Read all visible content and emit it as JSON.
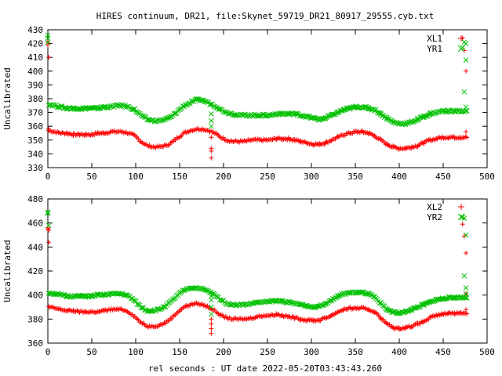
{
  "chart_data": [
    {
      "type": "scatter",
      "title": "HIRES continuum, DR21, file:Skynet_59719_DR21_80917_29555.cyb.txt",
      "ylabel": "Uncalibrated",
      "xlim": [
        0,
        500
      ],
      "ylim": [
        330,
        430
      ],
      "xticks": [
        0,
        50,
        100,
        150,
        200,
        250,
        300,
        350,
        400,
        450,
        500
      ],
      "yticks": [
        330,
        340,
        350,
        360,
        370,
        380,
        390,
        400,
        410,
        420,
        430
      ],
      "legend_position": "top-right",
      "series": [
        {
          "name": "XL1",
          "marker": "+",
          "color": "#ff0000",
          "base": 352,
          "x": [
            1,
            8,
            15,
            22,
            29,
            36,
            43,
            50,
            57,
            64,
            71,
            78,
            85,
            92,
            99,
            106,
            113,
            120,
            127,
            134,
            141,
            148,
            155,
            162,
            169,
            176,
            183,
            190,
            197,
            204,
            211,
            218,
            225,
            232,
            239,
            246,
            253,
            260,
            267,
            274,
            281,
            288,
            295,
            302,
            309,
            316,
            323,
            330,
            337,
            344,
            351,
            358,
            365,
            372,
            379,
            386,
            393,
            400,
            407,
            414,
            421,
            428,
            435,
            442,
            449,
            456,
            463,
            470,
            477
          ],
          "y": [
            357,
            356,
            355,
            355,
            354,
            354,
            354,
            354,
            355,
            355,
            356,
            356,
            356,
            355,
            353,
            349,
            346,
            345,
            345,
            346,
            348,
            352,
            355,
            357,
            358,
            358,
            357,
            355,
            352,
            350,
            349,
            349,
            349,
            350,
            350,
            350,
            350,
            351,
            351,
            351,
            350,
            349,
            348,
            347,
            347,
            348,
            350,
            352,
            354,
            355,
            356,
            356,
            355,
            353,
            350,
            347,
            345,
            344,
            344,
            345,
            346,
            348,
            350,
            351,
            352,
            352,
            352,
            352,
            352
          ],
          "outliers": [
            [
              0,
              419
            ],
            [
              0,
              421
            ],
            [
              1,
              410
            ],
            [
              1,
              358
            ],
            [
              186,
              344
            ],
            [
              186,
              342
            ],
            [
              186,
              337
            ],
            [
              186,
              352
            ],
            [
              472,
              424
            ],
            [
              474,
              415
            ],
            [
              476,
              400
            ],
            [
              476,
              356
            ]
          ]
        },
        {
          "name": "YR1",
          "marker": "x",
          "color": "#00c000",
          "base": 372,
          "x": [
            1,
            8,
            15,
            22,
            29,
            36,
            43,
            50,
            57,
            64,
            71,
            78,
            85,
            92,
            99,
            106,
            113,
            120,
            127,
            134,
            141,
            148,
            155,
            162,
            169,
            176,
            183,
            190,
            197,
            204,
            211,
            218,
            225,
            232,
            239,
            246,
            253,
            260,
            267,
            274,
            281,
            288,
            295,
            302,
            309,
            316,
            323,
            330,
            337,
            344,
            351,
            358,
            365,
            372,
            379,
            386,
            393,
            400,
            407,
            414,
            421,
            428,
            435,
            442,
            449,
            456,
            463,
            470,
            477
          ],
          "y": [
            376,
            375,
            374,
            373,
            373,
            373,
            373,
            373,
            373,
            374,
            374,
            375,
            375,
            374,
            372,
            368,
            365,
            364,
            364,
            365,
            367,
            371,
            375,
            377,
            379,
            379,
            377,
            375,
            372,
            370,
            369,
            368,
            368,
            368,
            368,
            368,
            368,
            369,
            369,
            369,
            369,
            368,
            367,
            366,
            365,
            366,
            368,
            370,
            372,
            373,
            374,
            374,
            373,
            372,
            369,
            366,
            363,
            362,
            362,
            363,
            365,
            367,
            369,
            370,
            371,
            371,
            371,
            371,
            371
          ],
          "outliers": [
            [
              0,
              426
            ],
            [
              0,
              424
            ],
            [
              0,
              421
            ],
            [
              186,
              360
            ],
            [
              186,
              364
            ],
            [
              186,
              369
            ],
            [
              472,
              417
            ],
            [
              474,
              421
            ],
            [
              476,
              408
            ],
            [
              474,
              385
            ],
            [
              476,
              374
            ],
            [
              476,
              420
            ]
          ]
        }
      ]
    },
    {
      "type": "scatter",
      "xlabel": "rel seconds : UT date 2022-05-20T03:43:43.260",
      "ylabel": "Uncalibrated",
      "xlim": [
        0,
        500
      ],
      "ylim": [
        360,
        480
      ],
      "xticks": [
        0,
        50,
        100,
        150,
        200,
        250,
        300,
        350,
        400,
        450,
        500
      ],
      "yticks": [
        360,
        380,
        400,
        420,
        440,
        460,
        480
      ],
      "legend_position": "top-right",
      "series": [
        {
          "name": "XL2",
          "marker": "+",
          "color": "#ff0000",
          "base": 385,
          "x": [
            1,
            8,
            15,
            22,
            29,
            36,
            43,
            50,
            57,
            64,
            71,
            78,
            85,
            92,
            99,
            106,
            113,
            120,
            127,
            134,
            141,
            148,
            155,
            162,
            169,
            176,
            183,
            190,
            197,
            204,
            211,
            218,
            225,
            232,
            239,
            246,
            253,
            260,
            267,
            274,
            281,
            288,
            295,
            302,
            309,
            316,
            323,
            330,
            337,
            344,
            351,
            358,
            365,
            372,
            379,
            386,
            393,
            400,
            407,
            414,
            421,
            428,
            435,
            442,
            449,
            456,
            463,
            470,
            477
          ],
          "y": [
            390,
            389,
            388,
            387,
            387,
            386,
            386,
            386,
            386,
            387,
            388,
            388,
            388,
            386,
            382,
            377,
            374,
            374,
            375,
            377,
            381,
            386,
            390,
            392,
            393,
            392,
            390,
            387,
            383,
            381,
            380,
            380,
            380,
            381,
            382,
            383,
            383,
            384,
            383,
            382,
            381,
            380,
            379,
            379,
            379,
            381,
            383,
            386,
            388,
            389,
            389,
            389,
            388,
            386,
            381,
            376,
            373,
            372,
            373,
            374,
            376,
            378,
            381,
            383,
            384,
            385,
            385,
            385,
            385
          ],
          "outliers": [
            [
              0,
              456
            ],
            [
              0,
              455
            ],
            [
              1,
              454
            ],
            [
              1,
              444
            ],
            [
              186,
              380
            ],
            [
              186,
              376
            ],
            [
              186,
              372
            ],
            [
              186,
              368
            ],
            [
              472,
              459
            ],
            [
              474,
              449
            ],
            [
              476,
              435
            ],
            [
              476,
              401
            ],
            [
              476,
              388
            ]
          ]
        },
        {
          "name": "YR2",
          "marker": "x",
          "color": "#00c000",
          "base": 398,
          "x": [
            1,
            8,
            15,
            22,
            29,
            36,
            43,
            50,
            57,
            64,
            71,
            78,
            85,
            92,
            99,
            106,
            113,
            120,
            127,
            134,
            141,
            148,
            155,
            162,
            169,
            176,
            183,
            190,
            197,
            204,
            211,
            218,
            225,
            232,
            239,
            246,
            253,
            260,
            267,
            274,
            281,
            288,
            295,
            302,
            309,
            316,
            323,
            330,
            337,
            344,
            351,
            358,
            365,
            372,
            379,
            386,
            393,
            400,
            407,
            414,
            421,
            428,
            435,
            442,
            449,
            456,
            463,
            470,
            477
          ],
          "y": [
            402,
            401,
            400,
            399,
            399,
            399,
            399,
            399,
            400,
            400,
            401,
            401,
            401,
            399,
            395,
            390,
            387,
            387,
            388,
            391,
            395,
            400,
            404,
            406,
            406,
            405,
            403,
            400,
            396,
            393,
            392,
            392,
            392,
            393,
            394,
            394,
            395,
            395,
            395,
            394,
            393,
            392,
            391,
            390,
            391,
            393,
            396,
            399,
            401,
            402,
            402,
            402,
            401,
            398,
            393,
            388,
            386,
            385,
            386,
            388,
            390,
            392,
            394,
            396,
            397,
            398,
            398,
            398,
            398
          ],
          "outliers": [
            [
              0,
              469
            ],
            [
              0,
              468
            ],
            [
              1,
              458
            ],
            [
              186,
              399
            ],
            [
              186,
              396
            ],
            [
              186,
              390
            ],
            [
              186,
              384
            ],
            [
              472,
              465
            ],
            [
              474,
              464
            ],
            [
              476,
              450
            ],
            [
              474,
              416
            ],
            [
              476,
              406
            ],
            [
              476,
              401
            ]
          ]
        }
      ]
    }
  ]
}
